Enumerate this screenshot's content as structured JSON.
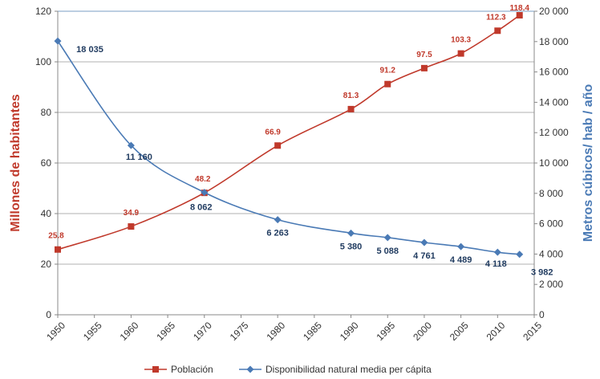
{
  "chart_data": {
    "type": "line",
    "x_ticks": [
      "1950",
      "1955",
      "1960",
      "1965",
      "1970",
      "1975",
      "1980",
      "1985",
      "1990",
      "1995",
      "2000",
      "2005",
      "2010",
      "2015"
    ],
    "xlim": [
      1950,
      2015
    ],
    "y_left": {
      "label": "Millones de habitantes",
      "lim": [
        0,
        120
      ],
      "ticks": [
        "0",
        "20",
        "40",
        "60",
        "80",
        "100",
        "120"
      ]
    },
    "y_right": {
      "label": "Metros cúbicos/ hab / año",
      "lim": [
        0,
        20000
      ],
      "ticks": [
        "0",
        "2 000",
        "4 000",
        "6 000",
        "8 000",
        "10 000",
        "12 000",
        "14 000",
        "16 000",
        "18 000",
        "20 000"
      ]
    },
    "grid": true,
    "legend_position": "bottom",
    "series": [
      {
        "name": "Población",
        "axis": "left",
        "color": "#c0392b",
        "marker": "square",
        "x": [
          1950,
          1960,
          1970,
          1980,
          1990,
          1995,
          2000,
          2005,
          2010,
          2013
        ],
        "values": [
          25.8,
          34.9,
          48.2,
          66.9,
          81.3,
          91.2,
          97.5,
          103.3,
          112.3,
          118.4
        ],
        "labels": [
          "25.8",
          "34.9",
          "48.2",
          "66.9",
          "81.3",
          "91.2",
          "97.5",
          "103.3",
          "112.3",
          "118.4"
        ]
      },
      {
        "name": "Disponibilidad natural media per cápita",
        "axis": "right",
        "color": "#4a7ab5",
        "marker": "diamond",
        "x": [
          1950,
          1960,
          1970,
          1980,
          1990,
          1995,
          2000,
          2005,
          2010,
          2013
        ],
        "values": [
          18035,
          11160,
          8062,
          6263,
          5380,
          5088,
          4761,
          4489,
          4118,
          3982
        ],
        "labels": [
          "18 035",
          "11 160",
          "8 062",
          "6 263",
          "5 380",
          "5 088",
          "4 761",
          "4 489",
          "4 118",
          "3 982"
        ]
      }
    ],
    "colors": {
      "left_axis_label": "#c0392b",
      "right_axis_label": "#4a7ab5",
      "population_labels": "#c0392b",
      "availability_labels": "#1f3a5f"
    }
  }
}
